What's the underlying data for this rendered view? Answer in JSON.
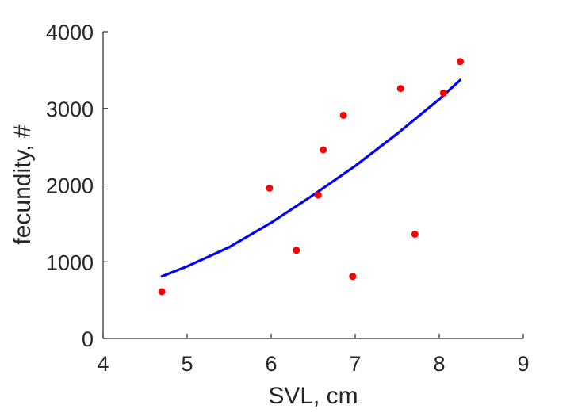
{
  "chart_data": {
    "type": "scatter",
    "title": "",
    "xlabel": "SVL, cm",
    "ylabel": "fecundity, #",
    "xlim": [
      4,
      9
    ],
    "ylim": [
      0,
      4000
    ],
    "xticks": [
      4,
      5,
      6,
      7,
      8,
      9
    ],
    "yticks": [
      0,
      1000,
      2000,
      3000,
      4000
    ],
    "grid": false,
    "box": false,
    "colors": {
      "points": "#ff0000",
      "fit": "#0000ff",
      "axes": "#262626"
    },
    "points": [
      {
        "x": 4.7,
        "y": 610
      },
      {
        "x": 5.98,
        "y": 1960
      },
      {
        "x": 6.3,
        "y": 1150
      },
      {
        "x": 6.56,
        "y": 1870
      },
      {
        "x": 6.62,
        "y": 2460
      },
      {
        "x": 6.86,
        "y": 2910
      },
      {
        "x": 6.97,
        "y": 810
      },
      {
        "x": 7.54,
        "y": 3260
      },
      {
        "x": 7.71,
        "y": 1360
      },
      {
        "x": 8.05,
        "y": 3200
      },
      {
        "x": 8.25,
        "y": 3610
      }
    ],
    "fit_curve": {
      "type": "line",
      "x": [
        4.7,
        5.0,
        5.5,
        6.0,
        6.5,
        7.0,
        7.5,
        8.0,
        8.25
      ],
      "y": [
        810,
        940,
        1190,
        1510,
        1870,
        2250,
        2670,
        3120,
        3370
      ]
    }
  }
}
